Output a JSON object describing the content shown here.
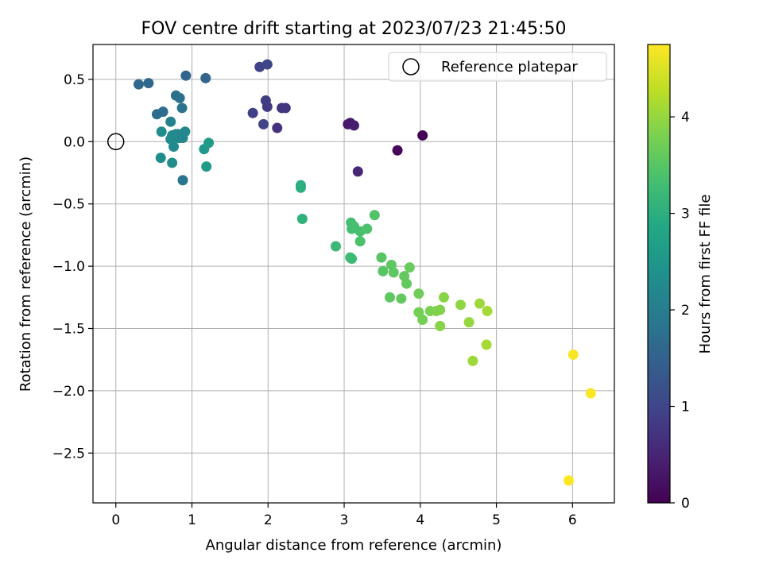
{
  "chart_data": {
    "type": "scatter",
    "title": "FOV centre drift starting at 2023/07/23 21:45:50",
    "xlabel": "Angular distance from reference (arcmin)",
    "ylabel": "Rotation from reference (arcmin)",
    "xlim": [
      -0.3,
      6.55
    ],
    "ylim": [
      -2.9,
      0.78
    ],
    "xticks": [
      0,
      1,
      2,
      3,
      4,
      5,
      6
    ],
    "xtick_labels": [
      "0",
      "1",
      "2",
      "3",
      "4",
      "5",
      "6"
    ],
    "yticks": [
      0.5,
      0.0,
      -0.5,
      -1.0,
      -1.5,
      -2.0,
      -2.5
    ],
    "ytick_labels": [
      "0.5",
      "0.0",
      "−0.5",
      "−1.0",
      "−1.5",
      "−2.0",
      "−2.5"
    ],
    "grid": true,
    "legend": {
      "position": "top-right",
      "label": "Reference platepar"
    },
    "colormap": "viridis",
    "colorbar": {
      "label": "Hours from first FF file",
      "range": [
        0,
        4.75
      ],
      "ticks": [
        0,
        1,
        2,
        3,
        4
      ],
      "tick_labels": [
        "0",
        "1",
        "2",
        "3",
        "4"
      ]
    },
    "reference_point": {
      "x": 0,
      "y": 0
    },
    "series": [
      {
        "values_format": "[x_arcmin, y_arcmin, hours_from_first_ff]",
        "points": [
          [
            4.03,
            0.05,
            0.0
          ],
          [
            3.7,
            -0.07,
            0.1
          ],
          [
            3.05,
            0.14,
            0.3
          ],
          [
            3.08,
            0.15,
            0.35
          ],
          [
            3.13,
            0.13,
            0.4
          ],
          [
            3.18,
            -0.24,
            0.5
          ],
          [
            2.12,
            0.11,
            0.7
          ],
          [
            2.18,
            0.27,
            0.75
          ],
          [
            2.23,
            0.27,
            0.75
          ],
          [
            1.99,
            0.28,
            0.8
          ],
          [
            1.97,
            0.33,
            0.85
          ],
          [
            1.8,
            0.23,
            0.9
          ],
          [
            1.94,
            0.14,
            0.95
          ],
          [
            1.89,
            0.6,
            0.95
          ],
          [
            1.99,
            0.62,
            1.0
          ],
          [
            0.3,
            0.46,
            1.6
          ],
          [
            0.43,
            0.47,
            1.6
          ],
          [
            0.92,
            0.53,
            1.55
          ],
          [
            1.18,
            0.51,
            1.55
          ],
          [
            0.54,
            0.22,
            1.7
          ],
          [
            0.62,
            0.24,
            1.7
          ],
          [
            0.79,
            0.37,
            1.75
          ],
          [
            0.84,
            0.35,
            1.75
          ],
          [
            0.87,
            0.27,
            1.8
          ],
          [
            0.88,
            -0.31,
            1.85
          ],
          [
            0.72,
            0.16,
            2.1
          ],
          [
            0.79,
            0.06,
            2.15
          ],
          [
            0.82,
            0.06,
            2.15
          ],
          [
            0.83,
            0.03,
            2.2
          ],
          [
            0.91,
            0.08,
            2.2
          ],
          [
            0.88,
            0.03,
            2.2
          ],
          [
            0.72,
            0.02,
            2.25
          ],
          [
            0.74,
            0.05,
            2.25
          ],
          [
            0.76,
            -0.04,
            2.25
          ],
          [
            0.6,
            0.08,
            2.3
          ],
          [
            0.59,
            -0.13,
            2.3
          ],
          [
            0.74,
            -0.17,
            2.35
          ],
          [
            1.16,
            -0.06,
            2.55
          ],
          [
            1.22,
            -0.01,
            2.6
          ],
          [
            1.19,
            -0.2,
            2.6
          ],
          [
            2.43,
            -0.35,
            3.0
          ],
          [
            2.43,
            -0.37,
            3.0
          ],
          [
            2.45,
            -0.62,
            3.05
          ],
          [
            2.89,
            -0.84,
            3.2
          ],
          [
            3.08,
            -0.93,
            3.25
          ],
          [
            3.1,
            -0.94,
            3.25
          ],
          [
            3.09,
            -0.65,
            3.3
          ],
          [
            3.1,
            -0.7,
            3.3
          ],
          [
            3.13,
            -0.68,
            3.35
          ],
          [
            3.21,
            -0.72,
            3.35
          ],
          [
            3.21,
            -0.8,
            3.4
          ],
          [
            3.3,
            -0.7,
            3.4
          ],
          [
            3.4,
            -0.59,
            3.45
          ],
          [
            3.49,
            -0.93,
            3.5
          ],
          [
            3.51,
            -1.04,
            3.5
          ],
          [
            3.62,
            -0.99,
            3.55
          ],
          [
            3.65,
            -1.05,
            3.55
          ],
          [
            3.6,
            -1.25,
            3.55
          ],
          [
            3.75,
            -1.26,
            3.6
          ],
          [
            3.79,
            -1.08,
            3.6
          ],
          [
            3.82,
            -1.14,
            3.6
          ],
          [
            3.86,
            -1.01,
            3.65
          ],
          [
            3.98,
            -1.22,
            3.7
          ],
          [
            3.98,
            -1.37,
            3.75
          ],
          [
            4.03,
            -1.43,
            3.75
          ],
          [
            4.13,
            -1.36,
            3.8
          ],
          [
            4.21,
            -1.36,
            3.85
          ],
          [
            4.26,
            -1.35,
            3.85
          ],
          [
            4.31,
            -1.25,
            3.9
          ],
          [
            4.26,
            -1.48,
            3.9
          ],
          [
            4.53,
            -1.31,
            3.95
          ],
          [
            4.64,
            -1.45,
            4.0
          ],
          [
            4.69,
            -1.76,
            4.05
          ],
          [
            4.78,
            -1.3,
            4.05
          ],
          [
            4.88,
            -1.36,
            4.1
          ],
          [
            4.87,
            -1.63,
            4.1
          ],
          [
            6.01,
            -1.71,
            4.7
          ],
          [
            6.24,
            -2.02,
            4.72
          ],
          [
            5.95,
            -2.72,
            4.75
          ]
        ]
      }
    ]
  }
}
